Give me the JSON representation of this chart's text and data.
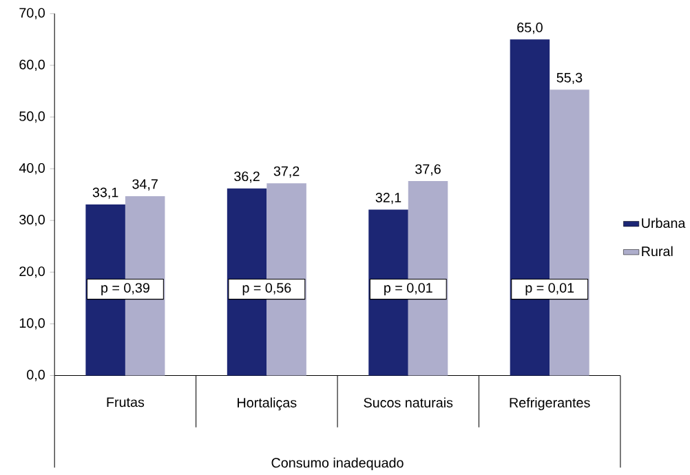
{
  "chart_data": {
    "type": "bar",
    "xlabel": "Consumo inadequado",
    "categories": [
      "Frutas",
      "Hortaliças",
      "Sucos naturais",
      "Refrigerantes"
    ],
    "series": [
      {
        "name": "Urbana",
        "color": "#1c2674",
        "values": [
          33.1,
          36.2,
          32.1,
          65.0
        ],
        "value_labels": [
          "33,1",
          "36,2",
          "32,1",
          "65,0"
        ]
      },
      {
        "name": "Rural",
        "color": "#aeaecc",
        "values": [
          34.7,
          37.2,
          37.6,
          55.3
        ],
        "value_labels": [
          "34,7",
          "37,2",
          "37,6",
          "55,3"
        ]
      }
    ],
    "ylim": [
      0,
      70
    ],
    "yticks": [
      {
        "value": 0,
        "label": "0,0"
      },
      {
        "value": 10,
        "label": "10,0"
      },
      {
        "value": 20,
        "label": "20,0"
      },
      {
        "value": 30,
        "label": "30,0"
      },
      {
        "value": 40,
        "label": "40,0"
      },
      {
        "value": 50,
        "label": "50,0"
      },
      {
        "value": 60,
        "label": "60,0"
      },
      {
        "value": 70,
        "label": "70,0"
      }
    ],
    "annotations": [
      "p = 0,39",
      "p = 0,56",
      "p = 0,01",
      "p = 0,01"
    ],
    "grid": false,
    "legend": "right"
  }
}
